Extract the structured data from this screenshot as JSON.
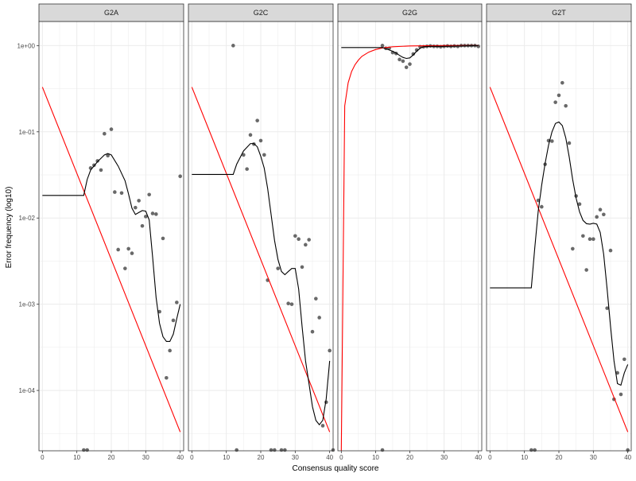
{
  "chart_data": {
    "type": "scatter",
    "xlabel": "Consensus quality score",
    "ylabel": "Error frequency (log10)",
    "x_range": [
      -1,
      41
    ],
    "y_range_log10": [
      -4.7,
      0.28
    ],
    "x_ticks": [
      0,
      10,
      20,
      30,
      40
    ],
    "x_tick_labels": [
      "0",
      "10",
      "20",
      "30",
      "40"
    ],
    "y_ticks": [
      1,
      0.1,
      0.01,
      0.001,
      0.0001
    ],
    "y_tick_labels": [
      "1e+00",
      "1e-01",
      "1e-02",
      "1e-03",
      "1e-04"
    ],
    "grid": true,
    "colors": {
      "points": "#595959",
      "fitted_line": "#000000",
      "nominal_line": "#ff0000",
      "strip_bg": "#d9d9d9",
      "panel_border": "#333333",
      "grid": "#ebebeb"
    },
    "panels": [
      {
        "name": "G2A",
        "points": [
          [
            12,
            2e-05
          ],
          [
            13,
            2e-05
          ],
          [
            14,
            0.038
          ],
          [
            15,
            0.041
          ],
          [
            16,
            0.046
          ],
          [
            17,
            0.036
          ],
          [
            18,
            0.095
          ],
          [
            19,
            0.053
          ],
          [
            20,
            0.107
          ],
          [
            21,
            0.02
          ],
          [
            22,
            0.0043
          ],
          [
            23,
            0.0195
          ],
          [
            24,
            0.0026
          ],
          [
            25,
            0.0044
          ],
          [
            26,
            0.0039
          ],
          [
            27,
            0.0132
          ],
          [
            28,
            0.0159
          ],
          [
            29,
            0.0081
          ],
          [
            30,
            0.0104
          ],
          [
            31,
            0.0187
          ],
          [
            32,
            0.0113
          ],
          [
            33,
            0.0111
          ],
          [
            34,
            0.00082
          ],
          [
            35,
            0.0058
          ],
          [
            36,
            0.00014
          ],
          [
            37,
            0.00029
          ],
          [
            38,
            0.00065
          ],
          [
            39,
            0.00105
          ],
          [
            40,
            0.0305
          ]
        ],
        "fitted": [
          [
            0,
            0.0183
          ],
          [
            12,
            0.0183
          ],
          [
            13,
            0.028
          ],
          [
            14,
            0.036
          ],
          [
            16,
            0.045
          ],
          [
            18,
            0.054
          ],
          [
            19,
            0.056
          ],
          [
            20,
            0.054
          ],
          [
            22,
            0.04
          ],
          [
            24,
            0.027
          ],
          [
            25,
            0.019
          ],
          [
            26,
            0.013
          ],
          [
            27,
            0.011
          ],
          [
            28,
            0.0116
          ],
          [
            29,
            0.0122
          ],
          [
            30,
            0.012
          ],
          [
            31,
            0.0095
          ],
          [
            32,
            0.0035
          ],
          [
            33,
            0.0012
          ],
          [
            34,
            0.0006
          ],
          [
            35,
            0.00042
          ],
          [
            36,
            0.00037
          ],
          [
            37,
            0.00037
          ],
          [
            38,
            0.00045
          ],
          [
            39,
            0.00068
          ],
          [
            40,
            0.001
          ]
        ],
        "nominal": [
          [
            0,
            0.33
          ],
          [
            40,
            3.3e-05
          ]
        ]
      },
      {
        "name": "G2C",
        "points": [
          [
            12,
            1.0
          ],
          [
            13,
            2e-05
          ],
          [
            15,
            0.054
          ],
          [
            16,
            0.037
          ],
          [
            17,
            0.092
          ],
          [
            18,
            0.072
          ],
          [
            19,
            0.135
          ],
          [
            20,
            0.079
          ],
          [
            21,
            0.054
          ],
          [
            22,
            0.0019
          ],
          [
            23,
            2e-05
          ],
          [
            24,
            2e-05
          ],
          [
            25,
            0.0026
          ],
          [
            26,
            2e-05
          ],
          [
            27,
            2e-05
          ],
          [
            28,
            0.00102
          ],
          [
            29,
            0.001
          ],
          [
            30,
            0.0062
          ],
          [
            31,
            0.0057
          ],
          [
            32,
            0.0027
          ],
          [
            33,
            0.0049
          ],
          [
            34,
            0.0056
          ],
          [
            35,
            0.00048
          ],
          [
            36,
            0.00116
          ],
          [
            37,
            0.0007
          ],
          [
            38,
            3.9e-05
          ],
          [
            39,
            7.3e-05
          ],
          [
            40,
            0.00029
          ],
          [
            41,
            2e-05
          ]
        ],
        "fitted": [
          [
            0,
            0.032
          ],
          [
            12,
            0.032
          ],
          [
            13,
            0.042
          ],
          [
            15,
            0.06
          ],
          [
            17,
            0.073
          ],
          [
            18,
            0.073
          ],
          [
            19,
            0.067
          ],
          [
            20,
            0.052
          ],
          [
            21,
            0.038
          ],
          [
            22,
            0.022
          ],
          [
            23,
            0.011
          ],
          [
            24,
            0.0055
          ],
          [
            25,
            0.0033
          ],
          [
            26,
            0.0024
          ],
          [
            27,
            0.0022
          ],
          [
            28,
            0.0024
          ],
          [
            29,
            0.0026
          ],
          [
            30,
            0.0026
          ],
          [
            31,
            0.0015
          ],
          [
            32,
            0.00055
          ],
          [
            33,
            0.00022
          ],
          [
            34,
            0.00012
          ],
          [
            35,
            6.5e-05
          ],
          [
            36,
            4.5e-05
          ],
          [
            37,
            4e-05
          ],
          [
            38,
            4.5e-05
          ],
          [
            39,
            8e-05
          ],
          [
            40,
            0.00022
          ]
        ],
        "nominal": [
          [
            0,
            0.33
          ],
          [
            40,
            3.3e-05
          ]
        ]
      },
      {
        "name": "G2G",
        "points": [
          [
            12,
            1.0
          ],
          [
            13,
            0.93
          ],
          [
            14,
            0.93
          ],
          [
            15,
            0.83
          ],
          [
            16,
            0.81
          ],
          [
            17,
            0.69
          ],
          [
            18,
            0.66
          ],
          [
            19,
            0.56
          ],
          [
            20,
            0.61
          ],
          [
            21,
            0.8
          ],
          [
            22,
            0.89
          ],
          [
            23,
            0.97
          ],
          [
            24,
            0.97
          ],
          [
            25,
            0.98
          ],
          [
            26,
            0.99
          ],
          [
            27,
            0.98
          ],
          [
            28,
            0.98
          ],
          [
            29,
            0.97
          ],
          [
            30,
            0.98
          ],
          [
            31,
            0.99
          ],
          [
            32,
            0.98
          ],
          [
            33,
            0.99
          ],
          [
            34,
            0.98
          ],
          [
            35,
            1.0
          ],
          [
            36,
            1.0
          ],
          [
            37,
            1.0
          ],
          [
            38,
            1.0
          ],
          [
            39,
            1.0
          ],
          [
            40,
            0.98
          ],
          [
            12,
            2e-05
          ]
        ],
        "fitted": [
          [
            0,
            0.95
          ],
          [
            12,
            0.95
          ],
          [
            13,
            0.92
          ],
          [
            14,
            0.89
          ],
          [
            15,
            0.86
          ],
          [
            16,
            0.82
          ],
          [
            17,
            0.77
          ],
          [
            18,
            0.73
          ],
          [
            19,
            0.71
          ],
          [
            20,
            0.72
          ],
          [
            21,
            0.78
          ],
          [
            22,
            0.86
          ],
          [
            23,
            0.93
          ],
          [
            24,
            0.97
          ],
          [
            26,
            0.98
          ],
          [
            30,
            0.98
          ],
          [
            35,
            0.99
          ],
          [
            40,
            1.0
          ]
        ],
        "nominal": [
          [
            0,
            2e-05
          ],
          [
            1,
            0.2
          ],
          [
            2,
            0.37
          ],
          [
            3,
            0.5
          ],
          [
            4,
            0.6
          ],
          [
            5,
            0.68
          ],
          [
            6,
            0.75
          ],
          [
            8,
            0.84
          ],
          [
            10,
            0.9
          ],
          [
            12,
            0.94
          ],
          [
            15,
            0.97
          ],
          [
            20,
            0.99
          ],
          [
            30,
            1.0
          ],
          [
            40,
            1.0
          ]
        ]
      },
      {
        "name": "G2T",
        "points": [
          [
            12,
            2e-05
          ],
          [
            13,
            2e-05
          ],
          [
            14,
            0.016
          ],
          [
            15,
            0.0135
          ],
          [
            16,
            0.042
          ],
          [
            17,
            0.079
          ],
          [
            18,
            0.078
          ],
          [
            19,
            0.22
          ],
          [
            20,
            0.265
          ],
          [
            21,
            0.37
          ],
          [
            22,
            0.2
          ],
          [
            23,
            0.074
          ],
          [
            24,
            0.0044
          ],
          [
            25,
            0.018
          ],
          [
            26,
            0.0145
          ],
          [
            27,
            0.0062
          ],
          [
            28,
            0.0025
          ],
          [
            29,
            0.0057
          ],
          [
            30,
            0.0057
          ],
          [
            31,
            0.0103
          ],
          [
            32,
            0.0125
          ],
          [
            33,
            0.011
          ],
          [
            34,
            0.0009
          ],
          [
            35,
            0.0042
          ],
          [
            36,
            7.9e-05
          ],
          [
            37,
            0.00016
          ],
          [
            38,
            9e-05
          ],
          [
            39,
            0.00023
          ],
          [
            40,
            2e-05
          ]
        ],
        "fitted": [
          [
            0,
            0.00155
          ],
          [
            12,
            0.00155
          ],
          [
            13,
            0.0045
          ],
          [
            14,
            0.012
          ],
          [
            15,
            0.024
          ],
          [
            16,
            0.043
          ],
          [
            17,
            0.07
          ],
          [
            18,
            0.1
          ],
          [
            19,
            0.125
          ],
          [
            20,
            0.13
          ],
          [
            21,
            0.118
          ],
          [
            22,
            0.085
          ],
          [
            23,
            0.051
          ],
          [
            24,
            0.028
          ],
          [
            25,
            0.017
          ],
          [
            26,
            0.0118
          ],
          [
            27,
            0.0094
          ],
          [
            28,
            0.0086
          ],
          [
            29,
            0.0085
          ],
          [
            30,
            0.0087
          ],
          [
            31,
            0.0085
          ],
          [
            32,
            0.0068
          ],
          [
            33,
            0.0038
          ],
          [
            34,
            0.0015
          ],
          [
            35,
            0.00055
          ],
          [
            36,
            0.00022
          ],
          [
            37,
            0.00012
          ],
          [
            38,
            0.000115
          ],
          [
            39,
            0.00016
          ],
          [
            40,
            0.0002
          ]
        ],
        "nominal": [
          [
            0,
            0.33
          ],
          [
            40,
            3.3e-05
          ]
        ]
      }
    ]
  }
}
